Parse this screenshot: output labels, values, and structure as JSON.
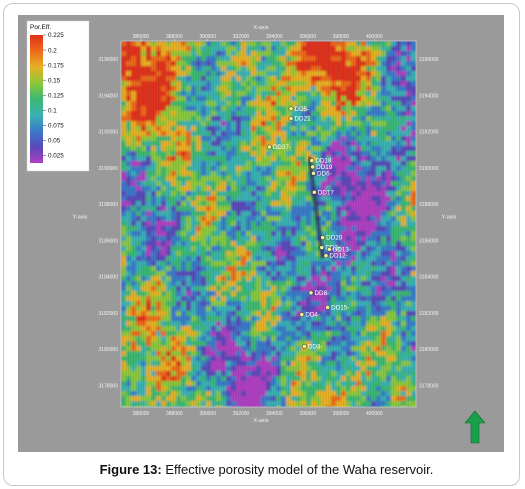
{
  "figure": {
    "label": "Figure 13:",
    "caption": " Effective porosity model of the Waha reservoir."
  },
  "map": {
    "x_axis_title_top": "X-axis",
    "x_axis_title_bottom": "X-axis",
    "y_axis_title_left": "Y-axis",
    "y_axis_title_right": "Y-axis",
    "x_ticks": [
      "386000",
      "388000",
      "390000",
      "392000",
      "394000",
      "396000",
      "398000",
      "400000"
    ],
    "y_ticks": [
      "3196000",
      "3194000",
      "3192000",
      "3190000",
      "3188000",
      "3186000",
      "3184000",
      "3182000",
      "3180000",
      "3178000"
    ],
    "wells": [
      {
        "name": "DD5-",
        "x": 395000,
        "y": 3193260
      },
      {
        "name": "DD21",
        "x": 395000,
        "y": 3192720
      },
      {
        "name": "DD37-",
        "x": 393700,
        "y": 3191150
      },
      {
        "name": "DD18",
        "x": 396250,
        "y": 3190400
      },
      {
        "name": "DD19",
        "x": 396300,
        "y": 3190050
      },
      {
        "name": "DD6-",
        "x": 396350,
        "y": 3189700
      },
      {
        "name": "DD17",
        "x": 396400,
        "y": 3188650
      },
      {
        "name": "DD20",
        "x": 396900,
        "y": 3186150
      },
      {
        "name": "DD2-",
        "x": 396850,
        "y": 3185600
      },
      {
        "name": "DD13-",
        "x": 397300,
        "y": 3185500
      },
      {
        "name": "DD12-",
        "x": 397100,
        "y": 3185150
      },
      {
        "name": "DD8-",
        "x": 396200,
        "y": 3183100
      },
      {
        "name": "DD15-",
        "x": 397200,
        "y": 3182300
      },
      {
        "name": "DD4-",
        "x": 395650,
        "y": 3181900
      },
      {
        "name": "DD3-",
        "x": 395800,
        "y": 3180150
      }
    ]
  },
  "legend": {
    "title": "Por.Eff.",
    "items": [
      {
        "label": "0.225",
        "color": "#e0301a"
      },
      {
        "label": "0.2",
        "color": "#ec6a1c"
      },
      {
        "label": "0.175",
        "color": "#e8b020"
      },
      {
        "label": "0.15",
        "color": "#8cc83a"
      },
      {
        "label": "0.125",
        "color": "#3cb870"
      },
      {
        "label": "0.1",
        "color": "#3ab2b2"
      },
      {
        "label": "0.075",
        "color": "#3a7ac8"
      },
      {
        "label": "0.05",
        "color": "#5a48b8"
      },
      {
        "label": "0.025",
        "color": "#b040c0"
      }
    ]
  },
  "north_arrow": {
    "color": "#1aa04a"
  }
}
